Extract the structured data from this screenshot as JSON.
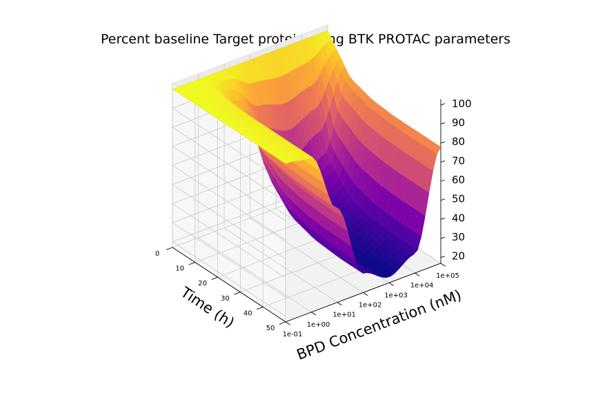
{
  "chart_data": {
    "type": "surface",
    "title": "Percent baseline Target protein using BTK PROTAC parameters",
    "x_axis": {
      "label": "BPD Concentration (nM)",
      "scale": "log",
      "ticks": [
        "1e-01",
        "1e+00",
        "1e+01",
        "1e+02",
        "1e+03",
        "1e+04",
        "1e+05"
      ],
      "range": [
        0.1,
        100000
      ]
    },
    "y_axis": {
      "label": "Time (h)",
      "ticks": [
        "0",
        "10",
        "20",
        "30",
        "40",
        "50"
      ],
      "range": [
        0,
        50
      ]
    },
    "z_axis": {
      "ticks": [
        "20",
        "30",
        "40",
        "50",
        "60",
        "70",
        "80",
        "90",
        "100"
      ],
      "range": [
        20,
        100
      ]
    },
    "colormap": "plasma",
    "grid": true,
    "surface": {
      "log10_concentration": [
        -1,
        0,
        1,
        2,
        3,
        4,
        5
      ],
      "time_h": [
        0,
        10,
        20,
        30,
        40,
        50
      ],
      "percent_baseline": [
        [
          100,
          100,
          100,
          100,
          100,
          100,
          100
        ],
        [
          100,
          99,
          80,
          45,
          35,
          45,
          83
        ],
        [
          100,
          98,
          70,
          32,
          24,
          32,
          79
        ],
        [
          100,
          98,
          67,
          28,
          21,
          28,
          78
        ],
        [
          100,
          98,
          66,
          27,
          20,
          27,
          78
        ],
        [
          100,
          98,
          66,
          27,
          20,
          27,
          78
        ]
      ]
    }
  }
}
